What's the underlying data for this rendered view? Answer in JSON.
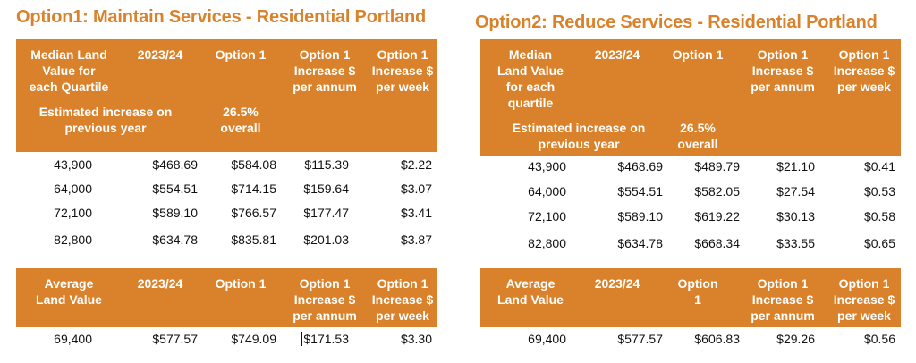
{
  "accent_color": "#d9822b",
  "left": {
    "title": "Option1: Maintain Services - Residential Portland",
    "quartile_table": {
      "headers": [
        "Median Land\nValue for\neach Quartile",
        "2023/24",
        "Option 1",
        "Option 1\nIncrease $\nper annum",
        "Option 1\nIncrease $\nper week"
      ],
      "note_increase": "Estimated increase on\nprevious year",
      "note_pct": "26.5%\noverall",
      "rows": [
        [
          "43,900",
          "$468.69",
          "$584.08",
          "$115.39",
          "$2.22"
        ],
        [
          "64,000",
          "$554.51",
          "$714.15",
          "$159.64",
          "$3.07"
        ],
        [
          "72,100",
          "$589.10",
          "$766.57",
          "$177.47",
          "$3.41"
        ],
        [
          "82,800",
          "$634.78",
          "$835.81",
          "$201.03",
          "$3.87"
        ]
      ]
    },
    "average_table": {
      "headers": [
        "Average\nLand Value",
        "2023/24",
        "Option 1",
        "Option 1\nIncrease $\nper annum",
        "Option 1\nIncrease $\nper week"
      ],
      "row": [
        "69,400",
        "$577.57",
        "$749.09",
        "$171.53",
        "$3.30"
      ]
    }
  },
  "right": {
    "title": "Option2: Reduce Services - Residential Portland",
    "quartile_table": {
      "headers": [
        "Median\nLand Value\nfor each\nquartile",
        "2023/24",
        "Option 1",
        "Option 1\nIncrease $\nper annum",
        "Option 1\nIncrease $\nper week"
      ],
      "note_increase": "Estimated increase on\nprevious year",
      "note_pct": "26.5%\noverall",
      "rows": [
        [
          "43,900",
          "$468.69",
          "$489.79",
          "$21.10",
          "$0.41"
        ],
        [
          "64,000",
          "$554.51",
          "$582.05",
          "$27.54",
          "$0.53"
        ],
        [
          "72,100",
          "$589.10",
          "$619.22",
          "$30.13",
          "$0.58"
        ],
        [
          "82,800",
          "$634.78",
          "$668.34",
          "$33.55",
          "$0.65"
        ]
      ]
    },
    "average_table": {
      "headers": [
        "Average\nLand Value",
        "2023/24",
        "Option\n1",
        "Option 1\nIncrease $\nper annum",
        "Option 1\nIncrease $\nper week"
      ],
      "row": [
        "69,400",
        "$577.57",
        "$606.83",
        "$29.26",
        "$0.56"
      ]
    }
  }
}
